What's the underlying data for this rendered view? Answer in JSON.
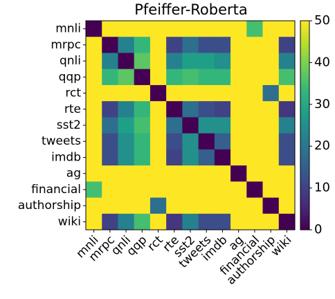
{
  "chart_data": {
    "type": "heatmap",
    "title": "Pfeiffer-Roberta",
    "categories": [
      "mnli",
      "mrpc",
      "qnli",
      "qqp",
      "rct",
      "rte",
      "sst2",
      "tweets",
      "imdb",
      "ag",
      "financial",
      "authorship",
      "wiki"
    ],
    "y_categories": [
      "mnli",
      "mrpc",
      "qnli",
      "qqp",
      "rct",
      "rte",
      "sst2",
      "tweets",
      "imdb",
      "ag",
      "financial",
      "authorship",
      "wiki"
    ],
    "values": [
      [
        0,
        50,
        50,
        50,
        50,
        50,
        50,
        50,
        50,
        50,
        35,
        50,
        50
      ],
      [
        50,
        0,
        22,
        33,
        50,
        10,
        18,
        12,
        12,
        50,
        50,
        50,
        10
      ],
      [
        50,
        22,
        0,
        37,
        50,
        22,
        28,
        28,
        25,
        50,
        50,
        50,
        22
      ],
      [
        50,
        33,
        37,
        0,
        50,
        33,
        35,
        33,
        33,
        50,
        50,
        50,
        35
      ],
      [
        50,
        50,
        50,
        50,
        0,
        50,
        50,
        50,
        50,
        50,
        50,
        18,
        50
      ],
      [
        50,
        10,
        22,
        33,
        50,
        0,
        18,
        12,
        10,
        50,
        50,
        50,
        8
      ],
      [
        50,
        18,
        28,
        35,
        50,
        18,
        0,
        25,
        25,
        50,
        50,
        50,
        22
      ],
      [
        50,
        12,
        25,
        33,
        50,
        12,
        25,
        0,
        15,
        50,
        50,
        50,
        12
      ],
      [
        50,
        12,
        25,
        33,
        50,
        10,
        25,
        15,
        0,
        50,
        50,
        50,
        12
      ],
      [
        50,
        50,
        50,
        50,
        50,
        50,
        50,
        50,
        50,
        0,
        50,
        50,
        50
      ],
      [
        35,
        50,
        50,
        50,
        50,
        50,
        50,
        50,
        50,
        50,
        0,
        50,
        50
      ],
      [
        50,
        50,
        50,
        50,
        18,
        50,
        50,
        50,
        50,
        50,
        50,
        0,
        50
      ],
      [
        50,
        10,
        22,
        35,
        50,
        8,
        22,
        12,
        12,
        50,
        50,
        50,
        0
      ]
    ],
    "colormap": "viridis",
    "zlim": [
      0,
      50
    ],
    "zticks": [
      0,
      10,
      20,
      30,
      40,
      50
    ]
  }
}
